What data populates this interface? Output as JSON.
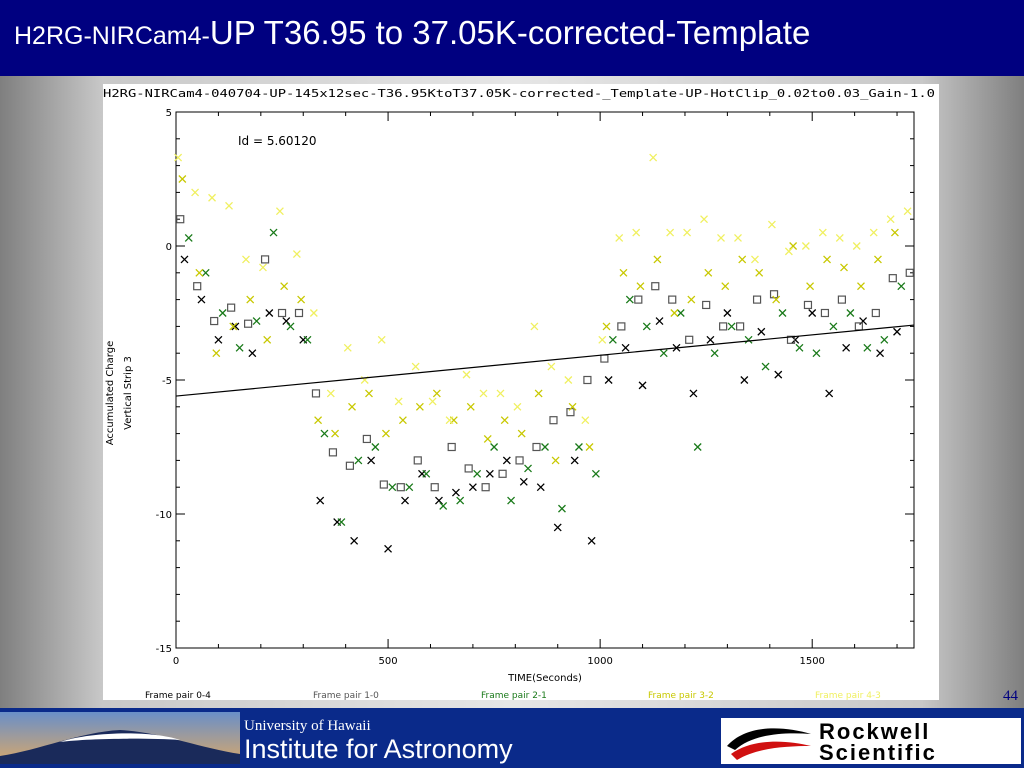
{
  "slide": {
    "title_prefix": "H2RG-NIRCam4-",
    "title_main": "UP T36.95 to 37.05K-corrected-Template",
    "page_number": "44"
  },
  "footer": {
    "ifa_line1": "University of Hawaii",
    "ifa_line2": "Institute for Astronomy",
    "rockwell_line1": "Rockwell",
    "rockwell_line2": "Scientific"
  },
  "chart_data": {
    "type": "scatter",
    "title": "H2RG-NIRCam4-040704-UP-145x12sec-T36.95KtoT37.05K-corrected-_Template-UP-HotClip_0.02to0.03_Gain-1.0",
    "xlabel": "TIME(Seconds)",
    "ylabel": "Accumulated Charge",
    "ylabel2": "Vertical Strip 3",
    "annotation": "Id = 5.60120",
    "xlim": [
      0,
      1740
    ],
    "ylim": [
      -15,
      5
    ],
    "x_ticks": [
      0,
      500,
      1000,
      1500
    ],
    "y_ticks": [
      5,
      0,
      -5,
      -10,
      -15
    ],
    "x_tick_labels": [
      "0",
      "500",
      "1000",
      "1500"
    ],
    "y_tick_labels": [
      "5",
      "0",
      "-5",
      "-10",
      "-15"
    ],
    "grid": false,
    "legend_position": "bottom",
    "fit_line": {
      "x": [
        0,
        1740
      ],
      "y": [
        -5.6,
        -2.95
      ]
    },
    "series": [
      {
        "name": "Frame pair 0-4",
        "color": "#000000",
        "marker": "x",
        "x": [
          20,
          60,
          100,
          140,
          180,
          220,
          260,
          300,
          340,
          380,
          420,
          460,
          500,
          540,
          580,
          620,
          660,
          700,
          740,
          780,
          820,
          860,
          900,
          940,
          980,
          1020,
          1060,
          1100,
          1140,
          1180,
          1220,
          1260,
          1300,
          1340,
          1380,
          1420,
          1460,
          1500,
          1540,
          1580,
          1620,
          1660,
          1700
        ],
        "y": [
          -0.5,
          -2.0,
          -3.5,
          -3.0,
          -4.0,
          -2.5,
          -2.8,
          -3.5,
          -9.5,
          -10.3,
          -11.0,
          -8.0,
          -11.3,
          -9.5,
          -8.5,
          -9.5,
          -9.2,
          -9.0,
          -8.5,
          -8.0,
          -8.8,
          -9.0,
          -10.5,
          -8.0,
          -11.0,
          -5.0,
          -3.8,
          -5.2,
          -2.8,
          -3.8,
          -5.5,
          -3.5,
          -2.5,
          -5.0,
          -3.2,
          -4.8,
          -3.5,
          -2.5,
          -5.5,
          -3.8,
          -2.8,
          -4.0,
          -3.2
        ]
      },
      {
        "name": "Frame pair 1-0",
        "color": "#555555",
        "marker": "square",
        "x": [
          10,
          50,
          90,
          130,
          170,
          210,
          250,
          290,
          330,
          370,
          410,
          450,
          490,
          530,
          570,
          610,
          650,
          690,
          730,
          770,
          810,
          850,
          890,
          930,
          970,
          1010,
          1050,
          1090,
          1130,
          1170,
          1210,
          1250,
          1290,
          1330,
          1370,
          1410,
          1450,
          1490,
          1530,
          1570,
          1610,
          1650,
          1690,
          1730
        ],
        "y": [
          1.0,
          -1.5,
          -2.8,
          -2.3,
          -2.9,
          -0.5,
          -2.5,
          -2.5,
          -5.5,
          -7.7,
          -8.2,
          -7.2,
          -8.9,
          -9.0,
          -8.0,
          -9.0,
          -7.5,
          -8.3,
          -9.0,
          -8.5,
          -8.0,
          -7.5,
          -6.5,
          -6.2,
          -5.0,
          -4.2,
          -3.0,
          -2.0,
          -1.5,
          -2.0,
          -3.5,
          -2.2,
          -3.0,
          -3.0,
          -2.0,
          -1.8,
          -3.5,
          -2.2,
          -2.5,
          -2.0,
          -3.0,
          -2.5,
          -1.2,
          -1.0
        ]
      },
      {
        "name": "Frame pair 2-1",
        "color": "#1a7a1a",
        "marker": "x",
        "x": [
          30,
          70,
          110,
          150,
          190,
          230,
          270,
          310,
          350,
          390,
          430,
          470,
          510,
          550,
          590,
          630,
          670,
          710,
          750,
          790,
          830,
          870,
          910,
          950,
          990,
          1030,
          1070,
          1110,
          1150,
          1190,
          1230,
          1270,
          1310,
          1350,
          1390,
          1430,
          1470,
          1510,
          1550,
          1590,
          1630,
          1670,
          1710
        ],
        "y": [
          0.3,
          -1.0,
          -2.5,
          -3.8,
          -2.8,
          0.5,
          -3.0,
          -3.5,
          -7.0,
          -10.3,
          -8.0,
          -7.5,
          -9.0,
          -9.0,
          -8.5,
          -9.7,
          -9.5,
          -8.5,
          -7.5,
          -9.5,
          -8.3,
          -7.5,
          -9.8,
          -7.5,
          -8.5,
          -3.5,
          -2.0,
          -3.0,
          -4.0,
          -2.5,
          -7.5,
          -4.0,
          -3.0,
          -3.5,
          -4.5,
          -2.5,
          -3.8,
          -4.0,
          -3.0,
          -2.5,
          -3.8,
          -3.5,
          -1.5
        ]
      },
      {
        "name": "Frame pair 3-2",
        "color": "#c8c800",
        "marker": "x",
        "x": [
          15,
          55,
          95,
          135,
          175,
          215,
          255,
          295,
          335,
          375,
          415,
          455,
          495,
          535,
          575,
          615,
          655,
          695,
          735,
          775,
          815,
          855,
          895,
          935,
          975,
          1015,
          1055,
          1095,
          1135,
          1175,
          1215,
          1255,
          1295,
          1335,
          1375,
          1415,
          1455,
          1495,
          1535,
          1575,
          1615,
          1655,
          1695
        ],
        "y": [
          2.5,
          -1.0,
          -4.0,
          -3.0,
          -2.0,
          -3.5,
          -1.5,
          -2.0,
          -6.5,
          -7.0,
          -6.0,
          -5.5,
          -7.0,
          -6.5,
          -6.0,
          -5.5,
          -6.5,
          -6.0,
          -7.2,
          -6.5,
          -7.0,
          -5.5,
          -8.0,
          -6.0,
          -7.5,
          -3.0,
          -1.0,
          -1.5,
          -0.5,
          -2.5,
          -2.0,
          -1.0,
          -1.5,
          -0.5,
          -1.0,
          -2.0,
          0.0,
          -1.5,
          -0.5,
          -0.8,
          -1.5,
          -0.5,
          0.5
        ]
      },
      {
        "name": "Frame pair 4-3",
        "color": "#f0f060",
        "marker": "x",
        "x": [
          5,
          45,
          85,
          125,
          165,
          205,
          245,
          285,
          325,
          365,
          405,
          445,
          485,
          525,
          565,
          605,
          645,
          685,
          725,
          765,
          805,
          845,
          885,
          925,
          965,
          1005,
          1045,
          1085,
          1125,
          1165,
          1205,
          1245,
          1285,
          1325,
          1365,
          1405,
          1445,
          1485,
          1525,
          1565,
          1605,
          1645,
          1685,
          1725
        ],
        "y": [
          3.3,
          2.0,
          1.8,
          1.5,
          -0.5,
          -0.8,
          1.3,
          -0.3,
          -2.5,
          -5.5,
          -3.8,
          -5.0,
          -3.5,
          -5.8,
          -4.5,
          -5.8,
          -6.5,
          -4.8,
          -5.5,
          -5.5,
          -6.0,
          -3.0,
          -4.5,
          -5.0,
          -6.5,
          -3.5,
          0.3,
          0.5,
          3.3,
          0.5,
          0.5,
          1.0,
          0.3,
          0.3,
          -0.5,
          0.8,
          -0.2,
          0.0,
          0.5,
          0.3,
          0.0,
          0.5,
          1.0,
          1.3
        ]
      }
    ]
  }
}
